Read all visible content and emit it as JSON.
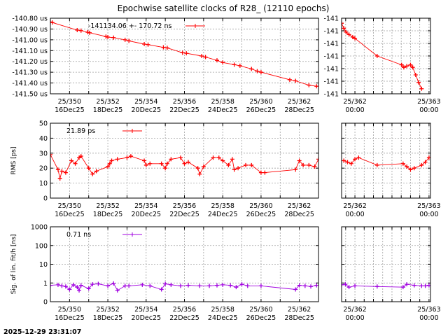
{
  "chart_data": {
    "type": "line",
    "title": "Epochwise satellite clocks of R28_ (12110 epochs)",
    "timestamp": "2025-12-29 23:31:07",
    "x_ticks_main": [
      {
        "day": 350,
        "label1": "25/350",
        "label2": "16Dec25"
      },
      {
        "day": 352,
        "label1": "25/352",
        "label2": "18Dec25"
      },
      {
        "day": 354,
        "label1": "25/354",
        "label2": "20Dec25"
      },
      {
        "day": 356,
        "label1": "25/356",
        "label2": "22Dec25"
      },
      {
        "day": 358,
        "label1": "25/358",
        "label2": "24Dec25"
      },
      {
        "day": 360,
        "label1": "25/360",
        "label2": "26Dec25"
      },
      {
        "day": 362,
        "label1": "25/362",
        "label2": "28Dec25"
      }
    ],
    "x_ticks_zoom": [
      {
        "day": 362,
        "label1": "25/362",
        "label2": "00:00"
      },
      {
        "day": 363,
        "label1": "25/363",
        "label2": "00:00"
      }
    ],
    "xlim_main": [
      349,
      363
    ],
    "xlim_zoom": [
      361.82,
      363.02
    ],
    "panels": [
      {
        "name": "clock",
        "ylabel": "",
        "color": "#ff0000",
        "scale": "linear",
        "ylim": [
          -141.5,
          -140.8
        ],
        "yticks": [
          {
            "v": -140.8,
            "label": "-140.80 us"
          },
          {
            "v": -140.9,
            "label": "-140.90 us"
          },
          {
            "v": -141.0,
            "label": "-141.00 us"
          },
          {
            "v": -141.1,
            "label": "-141.10 us"
          },
          {
            "v": -141.2,
            "label": "-141.20 us"
          },
          {
            "v": -141.3,
            "label": "-141.30 us"
          },
          {
            "v": -141.4,
            "label": "-141.40 us"
          },
          {
            "v": -141.5,
            "label": "-141.50 us"
          }
        ],
        "legend": "-141134.06 +-      170.72 ns",
        "points": [
          [
            349.0,
            -140.835
          ],
          [
            349.1,
            -140.84
          ],
          [
            350.4,
            -140.91
          ],
          [
            350.6,
            -140.915
          ],
          [
            350.95,
            -140.93
          ],
          [
            351.05,
            -140.935
          ],
          [
            351.9,
            -140.97
          ],
          [
            352.0,
            -140.975
          ],
          [
            352.3,
            -140.98
          ],
          [
            352.9,
            -141.0
          ],
          [
            353.1,
            -141.01
          ],
          [
            353.9,
            -141.04
          ],
          [
            354.1,
            -141.045
          ],
          [
            354.9,
            -141.07
          ],
          [
            355.1,
            -141.075
          ],
          [
            355.9,
            -141.12
          ],
          [
            356.1,
            -141.125
          ],
          [
            356.9,
            -141.15
          ],
          [
            357.1,
            -141.16
          ],
          [
            357.7,
            -141.19
          ],
          [
            358.0,
            -141.21
          ],
          [
            358.6,
            -141.23
          ],
          [
            358.9,
            -141.24
          ],
          [
            359.5,
            -141.27
          ],
          [
            359.8,
            -141.29
          ],
          [
            360.0,
            -141.3
          ],
          [
            361.5,
            -141.37
          ],
          [
            361.8,
            -141.38
          ],
          [
            362.5,
            -141.42
          ],
          [
            362.9,
            -141.43
          ]
        ],
        "zoom_ylim": [
          -141.445,
          -141.385
        ],
        "zoom_yticks": [
          {
            "v": -141.385,
            "label": "-141"
          },
          {
            "v": -141.395,
            "label": "-141"
          },
          {
            "v": -141.405,
            "label": "-141"
          },
          {
            "v": -141.415,
            "label": "-141"
          },
          {
            "v": -141.425,
            "label": "-141"
          },
          {
            "v": -141.435,
            "label": "-141"
          },
          {
            "v": -141.445,
            "label": "-141"
          }
        ],
        "zoom_points": [
          [
            361.82,
            -141.389
          ],
          [
            361.85,
            -141.393
          ],
          [
            361.88,
            -141.396
          ],
          [
            361.92,
            -141.398
          ],
          [
            361.97,
            -141.4
          ],
          [
            362.0,
            -141.401
          ],
          [
            362.3,
            -141.415
          ],
          [
            362.63,
            -141.422
          ],
          [
            362.66,
            -141.424
          ],
          [
            362.7,
            -141.423
          ],
          [
            362.75,
            -141.422
          ],
          [
            362.78,
            -141.424
          ],
          [
            362.82,
            -141.43
          ],
          [
            362.86,
            -141.436
          ],
          [
            362.9,
            -141.441
          ]
        ]
      },
      {
        "name": "rms",
        "ylabel": "RMS [ps]",
        "color": "#ff0000",
        "scale": "linear",
        "ylim": [
          0,
          50
        ],
        "yticks": [
          {
            "v": 0,
            "label": "0"
          },
          {
            "v": 10,
            "label": "10"
          },
          {
            "v": 20,
            "label": "20"
          },
          {
            "v": 30,
            "label": "30"
          },
          {
            "v": 40,
            "label": "40"
          },
          {
            "v": 50,
            "label": "50"
          }
        ],
        "legend": "21.89 ps",
        "points": [
          [
            349.0,
            29
          ],
          [
            349.4,
            19
          ],
          [
            349.5,
            13
          ],
          [
            349.6,
            18
          ],
          [
            349.8,
            17
          ],
          [
            350.1,
            25
          ],
          [
            350.3,
            23
          ],
          [
            350.5,
            27
          ],
          [
            350.6,
            28
          ],
          [
            351.0,
            20
          ],
          [
            351.2,
            16
          ],
          [
            351.4,
            18
          ],
          [
            352.0,
            21
          ],
          [
            352.1,
            23
          ],
          [
            352.2,
            25
          ],
          [
            352.5,
            26
          ],
          [
            353.0,
            27
          ],
          [
            353.2,
            28
          ],
          [
            353.9,
            25
          ],
          [
            354.0,
            22
          ],
          [
            354.2,
            23
          ],
          [
            354.8,
            23
          ],
          [
            355.0,
            20
          ],
          [
            355.1,
            23
          ],
          [
            355.3,
            26
          ],
          [
            355.8,
            27
          ],
          [
            356.0,
            23
          ],
          [
            356.2,
            24
          ],
          [
            356.7,
            20
          ],
          [
            356.8,
            16
          ],
          [
            357.0,
            21
          ],
          [
            357.5,
            27
          ],
          [
            357.8,
            27
          ],
          [
            358.0,
            25
          ],
          [
            358.3,
            22
          ],
          [
            358.5,
            26
          ],
          [
            358.6,
            19
          ],
          [
            358.8,
            20
          ],
          [
            359.2,
            22
          ],
          [
            359.5,
            22
          ],
          [
            360.0,
            17
          ],
          [
            360.2,
            17
          ],
          [
            361.8,
            19
          ],
          [
            362.0,
            25
          ],
          [
            362.2,
            22
          ],
          [
            362.5,
            22
          ],
          [
            362.8,
            21
          ],
          [
            363.0,
            26
          ]
        ],
        "zoom_ylim": [
          0,
          50
        ],
        "zoom_yticks": [],
        "zoom_points": [
          [
            361.85,
            25
          ],
          [
            361.9,
            24
          ],
          [
            361.95,
            23
          ],
          [
            362.0,
            26
          ],
          [
            362.05,
            27
          ],
          [
            362.3,
            22
          ],
          [
            362.65,
            23
          ],
          [
            362.7,
            21
          ],
          [
            362.75,
            19
          ],
          [
            362.8,
            20
          ],
          [
            362.9,
            22
          ],
          [
            362.95,
            24
          ],
          [
            363.0,
            27
          ]
        ]
      },
      {
        "name": "sigma",
        "ylabel": "Sig. of lin. fit/h [ns]",
        "color": "#a000e0",
        "scale": "log",
        "ylim": [
          0.1,
          1000
        ],
        "yticks": [
          {
            "v": 0.1,
            "label": "0"
          },
          {
            "v": 1,
            "label": "1"
          },
          {
            "v": 10,
            "label": "10"
          },
          {
            "v": 100,
            "label": "100"
          },
          {
            "v": 1000,
            "label": "1000"
          }
        ],
        "legend": "0.71 ns",
        "points": [
          [
            349.0,
            0.75
          ],
          [
            349.4,
            0.8
          ],
          [
            349.6,
            0.7
          ],
          [
            349.8,
            0.65
          ],
          [
            350.0,
            0.45
          ],
          [
            350.2,
            0.8
          ],
          [
            350.4,
            0.6
          ],
          [
            350.5,
            0.4
          ],
          [
            350.6,
            0.75
          ],
          [
            351.0,
            0.5
          ],
          [
            351.2,
            0.85
          ],
          [
            351.5,
            0.9
          ],
          [
            352.0,
            0.7
          ],
          [
            352.3,
            0.95
          ],
          [
            352.5,
            0.4
          ],
          [
            352.9,
            0.7
          ],
          [
            353.1,
            0.7
          ],
          [
            353.8,
            0.8
          ],
          [
            354.2,
            0.7
          ],
          [
            354.8,
            0.45
          ],
          [
            355.0,
            0.9
          ],
          [
            355.3,
            0.8
          ],
          [
            355.8,
            0.7
          ],
          [
            356.2,
            0.75
          ],
          [
            356.8,
            0.7
          ],
          [
            357.3,
            0.7
          ],
          [
            357.7,
            0.75
          ],
          [
            358.0,
            0.8
          ],
          [
            358.4,
            0.75
          ],
          [
            358.7,
            0.6
          ],
          [
            359.0,
            0.85
          ],
          [
            359.3,
            0.7
          ],
          [
            360.0,
            0.7
          ],
          [
            361.8,
            0.45
          ],
          [
            362.0,
            0.75
          ],
          [
            362.3,
            0.7
          ],
          [
            362.6,
            0.65
          ],
          [
            362.9,
            0.75
          ]
        ],
        "zoom_ylim": [
          0.1,
          1000
        ],
        "zoom_yticks": [],
        "zoom_points": [
          [
            361.82,
            0.8
          ],
          [
            361.87,
            0.85
          ],
          [
            361.92,
            0.6
          ],
          [
            362.0,
            0.7
          ],
          [
            362.3,
            0.65
          ],
          [
            362.65,
            0.6
          ],
          [
            362.7,
            0.85
          ],
          [
            362.8,
            0.75
          ],
          [
            362.9,
            0.7
          ],
          [
            362.95,
            0.7
          ],
          [
            363.0,
            0.75
          ]
        ]
      }
    ]
  }
}
